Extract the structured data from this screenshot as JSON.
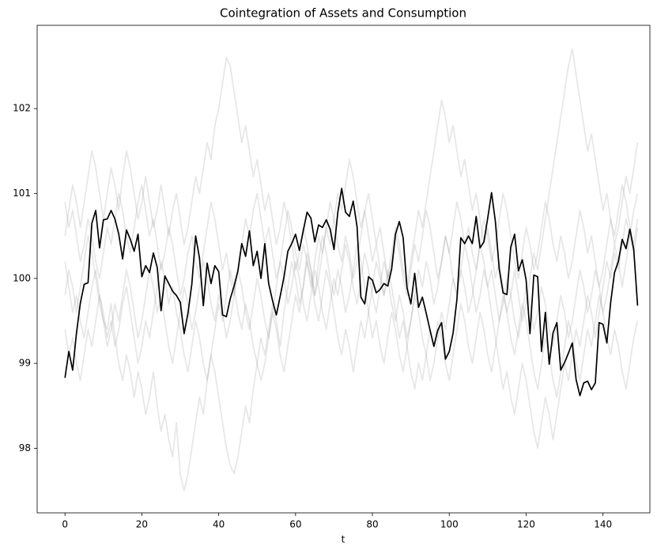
{
  "chart_data": {
    "type": "line",
    "title": "Cointegration of Assets and Consumption",
    "xlabel": "t",
    "x": [
      0,
      1,
      2,
      3,
      4,
      5,
      6,
      7,
      8,
      9,
      10,
      11,
      12,
      13,
      14,
      15,
      16,
      17,
      18,
      19,
      20,
      21,
      22,
      23,
      24,
      25,
      26,
      27,
      28,
      29,
      30,
      31,
      32,
      33,
      34,
      35,
      36,
      37,
      38,
      39,
      40,
      41,
      42,
      43,
      44,
      45,
      46,
      47,
      48,
      49,
      50,
      51,
      52,
      53,
      54,
      55,
      56,
      57,
      58,
      59,
      60,
      61,
      62,
      63,
      64,
      65,
      66,
      67,
      68,
      69,
      70,
      71,
      72,
      73,
      74,
      75,
      76,
      77,
      78,
      79,
      80,
      81,
      82,
      83,
      84,
      85,
      86,
      87,
      88,
      89,
      90,
      91,
      92,
      93,
      94,
      95,
      96,
      97,
      98,
      99,
      100,
      101,
      102,
      103,
      104,
      105,
      106,
      107,
      108,
      109,
      110,
      111,
      112,
      113,
      114,
      115,
      116,
      117,
      118,
      119,
      120,
      121,
      122,
      123,
      124,
      125,
      126,
      127,
      128,
      129,
      130,
      131,
      132,
      133,
      134,
      135,
      136,
      137,
      138,
      139,
      140,
      141,
      142,
      143,
      144,
      145,
      146,
      147,
      148,
      149
    ],
    "xlim": [
      -7.24,
      152.2
    ],
    "xticks": [
      0,
      20,
      40,
      60,
      80,
      100,
      120,
      140
    ],
    "ylim": [
      97.24,
      102.98
    ],
    "yticks": [
      98,
      99,
      100,
      101,
      102
    ],
    "series": [
      {
        "color": "#808080",
        "alpha": 0.2,
        "values": [
          100.2,
          99.9,
          99.6,
          99.8,
          99.5,
          99.3,
          99.6,
          99.9,
          100.1,
          99.8,
          99.5,
          99.4,
          99.7,
          99.3,
          99.0,
          98.8,
          99.1,
          98.9,
          98.6,
          98.9,
          98.7,
          98.4,
          98.6,
          98.9,
          98.5,
          98.2,
          98.4,
          98.1,
          97.9,
          98.3,
          97.7,
          97.5,
          97.7,
          98.0,
          98.3,
          98.6,
          98.4,
          98.8,
          99.1,
          98.9,
          98.6,
          98.3,
          98.0,
          97.8,
          97.7,
          97.9,
          98.2,
          98.5,
          98.3,
          98.7,
          99.0,
          99.3,
          99.1,
          99.4,
          99.7,
          99.5,
          99.2,
          99.6,
          99.9,
          100.2,
          100.0,
          99.7,
          99.9,
          100.3,
          100.1,
          99.8,
          100.2,
          100.5,
          100.3,
          100.0,
          99.8,
          100.1,
          99.9,
          99.6,
          99.8,
          100.1,
          100.4,
          100.2,
          99.9,
          99.6,
          99.3,
          99.5,
          99.2,
          99.0,
          99.3,
          99.6,
          99.4,
          99.1,
          98.9,
          99.2,
          99.5,
          99.8,
          99.6,
          99.3,
          99.1,
          98.8,
          99.0,
          99.3,
          99.6,
          99.4,
          99.7,
          100.0,
          99.8,
          100.1,
          100.4,
          100.2,
          99.9,
          99.6,
          99.8,
          100.1,
          99.9,
          99.6,
          99.3,
          99.0,
          98.7,
          98.9,
          98.6,
          98.4,
          98.7,
          99.0,
          98.8,
          98.5,
          98.2,
          98.0,
          98.3,
          98.6,
          98.4,
          98.1,
          98.4,
          98.7,
          99.0,
          98.8,
          99.1,
          99.4,
          99.2,
          99.5,
          99.8,
          99.6,
          99.3,
          99.6,
          99.9,
          100.2,
          100.0,
          100.3,
          100.1,
          100.4,
          100.7,
          100.5,
          100.8,
          101.0
        ]
      },
      {
        "color": "#808080",
        "alpha": 0.2,
        "values": [
          100.5,
          100.8,
          101.1,
          100.9,
          100.6,
          100.9,
          101.2,
          101.5,
          101.3,
          101.0,
          100.7,
          101.0,
          101.3,
          101.1,
          100.8,
          101.2,
          101.5,
          101.3,
          101.0,
          100.7,
          100.9,
          101.2,
          100.9,
          100.6,
          100.8,
          101.1,
          100.8,
          100.5,
          100.8,
          101.0,
          100.7,
          100.4,
          100.6,
          100.9,
          101.2,
          101.0,
          101.3,
          101.6,
          101.4,
          101.8,
          102.0,
          102.3,
          102.6,
          102.5,
          102.2,
          101.9,
          101.6,
          101.8,
          101.5,
          101.2,
          101.4,
          101.1,
          100.8,
          101.0,
          100.7,
          100.4,
          100.6,
          100.9,
          100.7,
          100.4,
          100.1,
          100.3,
          100.6,
          100.4,
          100.1,
          99.8,
          100.0,
          100.3,
          100.6,
          100.4,
          100.7,
          101.0,
          100.8,
          101.1,
          101.4,
          101.2,
          100.9,
          100.6,
          100.8,
          100.5,
          100.2,
          100.4,
          100.1,
          99.8,
          100.0,
          100.3,
          100.6,
          100.4,
          100.1,
          99.9,
          100.2,
          100.5,
          100.8,
          100.6,
          100.9,
          101.2,
          101.5,
          101.8,
          102.1,
          101.9,
          101.6,
          101.8,
          101.5,
          101.2,
          101.4,
          101.1,
          100.8,
          101.0,
          100.7,
          100.4,
          100.6,
          100.3,
          100.0,
          100.2,
          99.9,
          99.6,
          99.8,
          100.1,
          99.8,
          99.5,
          99.7,
          100.0,
          100.3,
          100.1,
          100.4,
          100.7,
          101.0,
          101.3,
          101.6,
          101.9,
          102.2,
          102.5,
          102.7,
          102.4,
          102.1,
          101.8,
          101.5,
          101.7,
          101.4,
          101.1,
          100.8,
          101.0,
          100.7,
          100.4,
          100.6,
          100.9,
          101.2,
          101.0,
          101.3,
          101.6
        ]
      },
      {
        "color": "#808080",
        "alpha": 0.2,
        "values": [
          99.4,
          99.1,
          99.3,
          99.0,
          98.8,
          99.1,
          99.4,
          99.2,
          99.5,
          99.8,
          99.6,
          99.3,
          99.5,
          99.2,
          99.4,
          99.7,
          99.9,
          99.6,
          99.3,
          99.0,
          99.2,
          99.5,
          99.3,
          99.6,
          99.9,
          100.2,
          100.0,
          99.7,
          99.9,
          99.6,
          99.4,
          99.1,
          98.9,
          99.2,
          99.5,
          99.3,
          99.0,
          98.8,
          99.1,
          99.4,
          99.7,
          99.5,
          99.8,
          100.1,
          99.9,
          99.6,
          99.4,
          99.7,
          99.5,
          99.2,
          99.0,
          98.8,
          99.0,
          99.3,
          99.6,
          99.4,
          99.1,
          98.9,
          99.2,
          99.5,
          99.8,
          99.6,
          99.9,
          100.2,
          100.0,
          99.7,
          99.5,
          99.8,
          100.1,
          99.9,
          99.6,
          99.3,
          99.1,
          99.4,
          99.2,
          98.9,
          99.2,
          99.5,
          99.3,
          99.6,
          99.9,
          100.2,
          100.0,
          99.8,
          100.1,
          99.9,
          99.6,
          99.3,
          99.5,
          99.2,
          98.9,
          98.7,
          99.0,
          98.8,
          99.1,
          99.4,
          99.2,
          99.5,
          99.3,
          99.0,
          98.8,
          99.1,
          99.4,
          99.7,
          99.5,
          99.2,
          99.0,
          99.3,
          99.6,
          99.4,
          99.1,
          98.9,
          99.2,
          99.5,
          99.8,
          99.6,
          99.3,
          99.1,
          99.4,
          99.7,
          99.5,
          99.2,
          98.9,
          98.7,
          99.0,
          99.3,
          99.1,
          98.8,
          98.6,
          98.9,
          99.2,
          99.5,
          99.3,
          99.0,
          98.8,
          99.1,
          99.4,
          99.2,
          99.5,
          99.8,
          99.6,
          99.3,
          99.1,
          99.4,
          99.2,
          98.9,
          98.7,
          99.0,
          99.3,
          99.5
        ]
      },
      {
        "color": "#808080",
        "alpha": 0.2,
        "values": [
          100.9,
          100.6,
          100.8,
          100.5,
          100.2,
          100.4,
          100.7,
          100.5,
          100.2,
          100.0,
          100.3,
          100.6,
          100.4,
          100.7,
          101.0,
          100.8,
          100.5,
          100.3,
          100.6,
          100.9,
          101.1,
          100.8,
          100.5,
          100.7,
          100.4,
          100.1,
          100.3,
          100.6,
          100.4,
          100.1,
          99.8,
          100.0,
          100.3,
          100.5,
          100.2,
          100.0,
          100.3,
          100.6,
          100.9,
          100.7,
          100.4,
          100.1,
          100.3,
          100.0,
          99.8,
          100.1,
          100.4,
          100.7,
          100.5,
          100.8,
          101.0,
          100.7,
          100.4,
          100.6,
          100.3,
          100.0,
          100.2,
          100.5,
          100.8,
          100.6,
          100.3,
          100.1,
          100.4,
          100.2,
          99.9,
          100.2,
          100.5,
          100.3,
          100.6,
          100.9,
          100.7,
          100.4,
          100.2,
          100.5,
          100.3,
          100.0,
          100.2,
          100.5,
          100.8,
          101.0,
          100.7,
          100.4,
          100.6,
          100.3,
          100.0,
          100.2,
          100.5,
          100.3,
          100.0,
          99.8,
          100.1,
          100.4,
          100.2,
          100.5,
          100.8,
          100.6,
          100.3,
          100.0,
          100.2,
          100.5,
          100.3,
          100.6,
          100.9,
          100.7,
          100.4,
          100.6,
          100.3,
          100.1,
          100.4,
          100.7,
          100.5,
          100.2,
          100.4,
          100.7,
          101.0,
          100.8,
          100.5,
          100.2,
          100.0,
          100.3,
          100.6,
          100.4,
          100.1,
          100.3,
          100.6,
          100.9,
          100.7,
          100.4,
          100.2,
          100.5,
          100.3,
          100.0,
          100.2,
          100.5,
          100.8,
          100.6,
          100.3,
          100.5,
          100.2,
          99.9,
          100.1,
          100.4,
          100.7,
          100.5,
          100.8,
          101.1,
          100.9,
          100.6,
          100.4,
          100.7
        ]
      },
      {
        "color": "#808080",
        "alpha": 0.2,
        "values": [
          99.8,
          100.1,
          99.9,
          99.6,
          99.9,
          100.2,
          100.5,
          100.3,
          100.0,
          99.7,
          99.5,
          99.2,
          99.4,
          99.7,
          99.5,
          99.8,
          100.1,
          99.9,
          99.6,
          99.3,
          99.5,
          99.8,
          100.1,
          99.9,
          99.6,
          99.8,
          99.5,
          99.2,
          99.0,
          99.3,
          99.6,
          99.9,
          99.7,
          99.4,
          99.6,
          99.9,
          100.2,
          100.0,
          99.7,
          99.5,
          99.8,
          99.6,
          99.3,
          99.5,
          99.8,
          100.1,
          99.9,
          99.6,
          99.4,
          99.7,
          100.0,
          99.8,
          99.5,
          99.3,
          99.6,
          99.9,
          100.2,
          100.0,
          99.7,
          99.9,
          100.2,
          100.0,
          99.7,
          99.5,
          99.8,
          100.1,
          99.9,
          99.6,
          99.4,
          99.7,
          100.0,
          99.8,
          100.1,
          100.4,
          100.2,
          99.9,
          99.7,
          100.0,
          100.3,
          100.1,
          99.8,
          99.6,
          99.9,
          100.2,
          100.0,
          99.7,
          99.5,
          99.8,
          99.6,
          99.3,
          99.5,
          99.8,
          100.1,
          99.9,
          100.2,
          100.0,
          99.7,
          99.9,
          100.2,
          100.5,
          100.3,
          100.0,
          99.8,
          100.1,
          99.9,
          99.6,
          99.8,
          100.1,
          100.4,
          100.2,
          99.9,
          100.1,
          99.8,
          99.5,
          99.7,
          100.0,
          99.8,
          99.5,
          99.3,
          99.6,
          99.9,
          99.7,
          99.4,
          99.6,
          99.9,
          99.7,
          99.4,
          99.2,
          99.5,
          99.8,
          99.6,
          99.3,
          99.5,
          99.8,
          100.1,
          99.9,
          99.6,
          99.8,
          100.1,
          99.9,
          99.6,
          99.8,
          100.1,
          100.4,
          100.2,
          99.9,
          100.2,
          100.5,
          100.3,
          100.6
        ]
      },
      {
        "color": "#000000",
        "alpha": 1,
        "values": [
          98.83,
          99.14,
          98.92,
          99.36,
          99.71,
          99.93,
          99.95,
          100.65,
          100.8,
          100.36,
          100.69,
          100.7,
          100.8,
          100.7,
          100.52,
          100.23,
          100.57,
          100.46,
          100.32,
          100.52,
          100.02,
          100.15,
          100.07,
          100.3,
          100.13,
          99.62,
          100.03,
          99.94,
          99.85,
          99.8,
          99.72,
          99.35,
          99.59,
          99.93,
          100.5,
          100.24,
          99.68,
          100.18,
          99.94,
          100.15,
          100.08,
          99.57,
          99.55,
          99.76,
          99.91,
          100.09,
          100.41,
          100.26,
          100.56,
          100.15,
          100.32,
          100.0,
          100.41,
          99.94,
          99.74,
          99.57,
          99.79,
          100.02,
          100.32,
          100.41,
          100.52,
          100.33,
          100.56,
          100.78,
          100.71,
          100.43,
          100.63,
          100.6,
          100.69,
          100.58,
          100.34,
          100.78,
          101.06,
          100.78,
          100.73,
          100.91,
          100.61,
          99.78,
          99.7,
          100.02,
          99.98,
          99.83,
          99.87,
          99.94,
          99.91,
          100.11,
          100.52,
          100.67,
          100.48,
          99.89,
          99.7,
          100.06,
          99.66,
          99.78,
          99.59,
          99.39,
          99.2,
          99.39,
          99.48,
          99.05,
          99.14,
          99.36,
          99.76,
          100.48,
          100.41,
          100.5,
          100.41,
          100.73,
          100.36,
          100.43,
          100.71,
          101.01,
          100.67,
          100.11,
          99.83,
          99.81,
          100.37,
          100.52,
          100.09,
          100.22,
          99.98,
          99.35,
          100.04,
          100.02,
          99.14,
          99.6,
          98.99,
          99.36,
          99.48,
          98.92,
          99.01,
          99.12,
          99.24,
          98.81,
          98.62,
          98.77,
          98.79,
          98.69,
          98.77,
          99.48,
          99.46,
          99.24,
          99.72,
          100.07,
          100.2,
          100.46,
          100.35,
          100.58,
          100.34,
          99.68
        ]
      }
    ]
  }
}
